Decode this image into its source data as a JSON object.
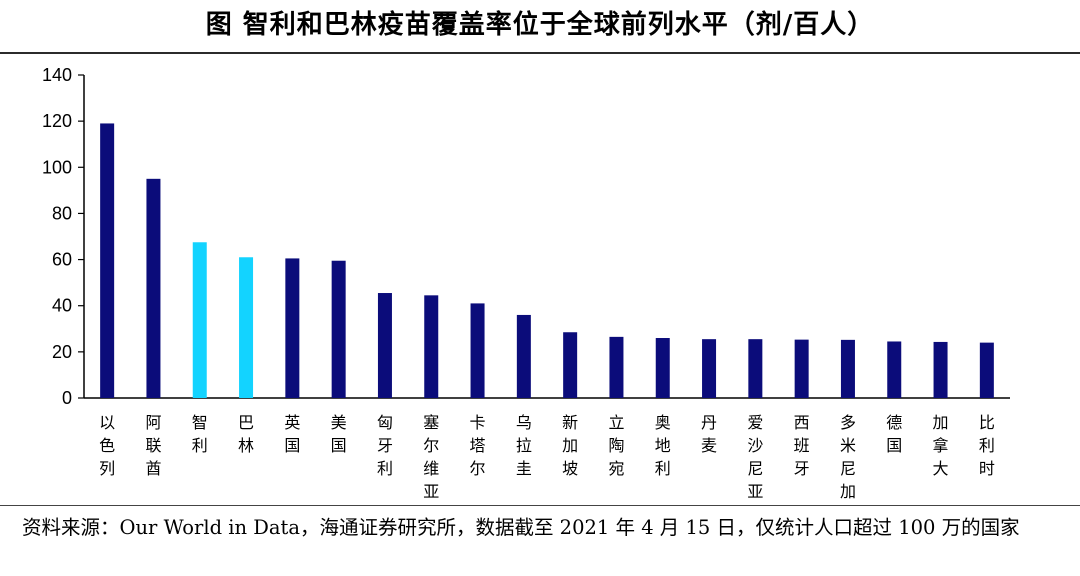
{
  "title": "图  智利和巴林疫苗覆盖率位于全球前列水平（剂/百人）",
  "source": "资料来源：Our World in Data，海通证券研究所，数据截至 2021 年 4 月 15 日，仅统计人口超过 100 万的国家",
  "colors": {
    "bar_default": "#0b0c7a",
    "bar_highlight": "#13d3ff",
    "axis": "#000000"
  },
  "chart_data": {
    "type": "bar",
    "categories": [
      "以色列",
      "阿联酋",
      "智利",
      "巴林",
      "英国",
      "美国",
      "匈牙利",
      "塞尔维亚",
      "卡塔尔",
      "乌拉圭",
      "新加坡",
      "立陶宛",
      "奥地利",
      "丹麦",
      "爱沙尼亚",
      "西班牙",
      "多米尼加",
      "德国",
      "加拿大",
      "比利时"
    ],
    "values": [
      119,
      95,
      67.5,
      61,
      60.5,
      59.5,
      45.5,
      44.5,
      41,
      36,
      28.5,
      26.5,
      26,
      25.5,
      25.5,
      25.3,
      25.2,
      24.5,
      24.3,
      24
    ],
    "highlight": [
      "智利",
      "巴林"
    ],
    "ylim": [
      0,
      140
    ],
    "yticks": [
      0,
      20,
      40,
      60,
      80,
      100,
      120,
      140
    ],
    "grid": false,
    "xlabel": "",
    "ylabel": ""
  }
}
